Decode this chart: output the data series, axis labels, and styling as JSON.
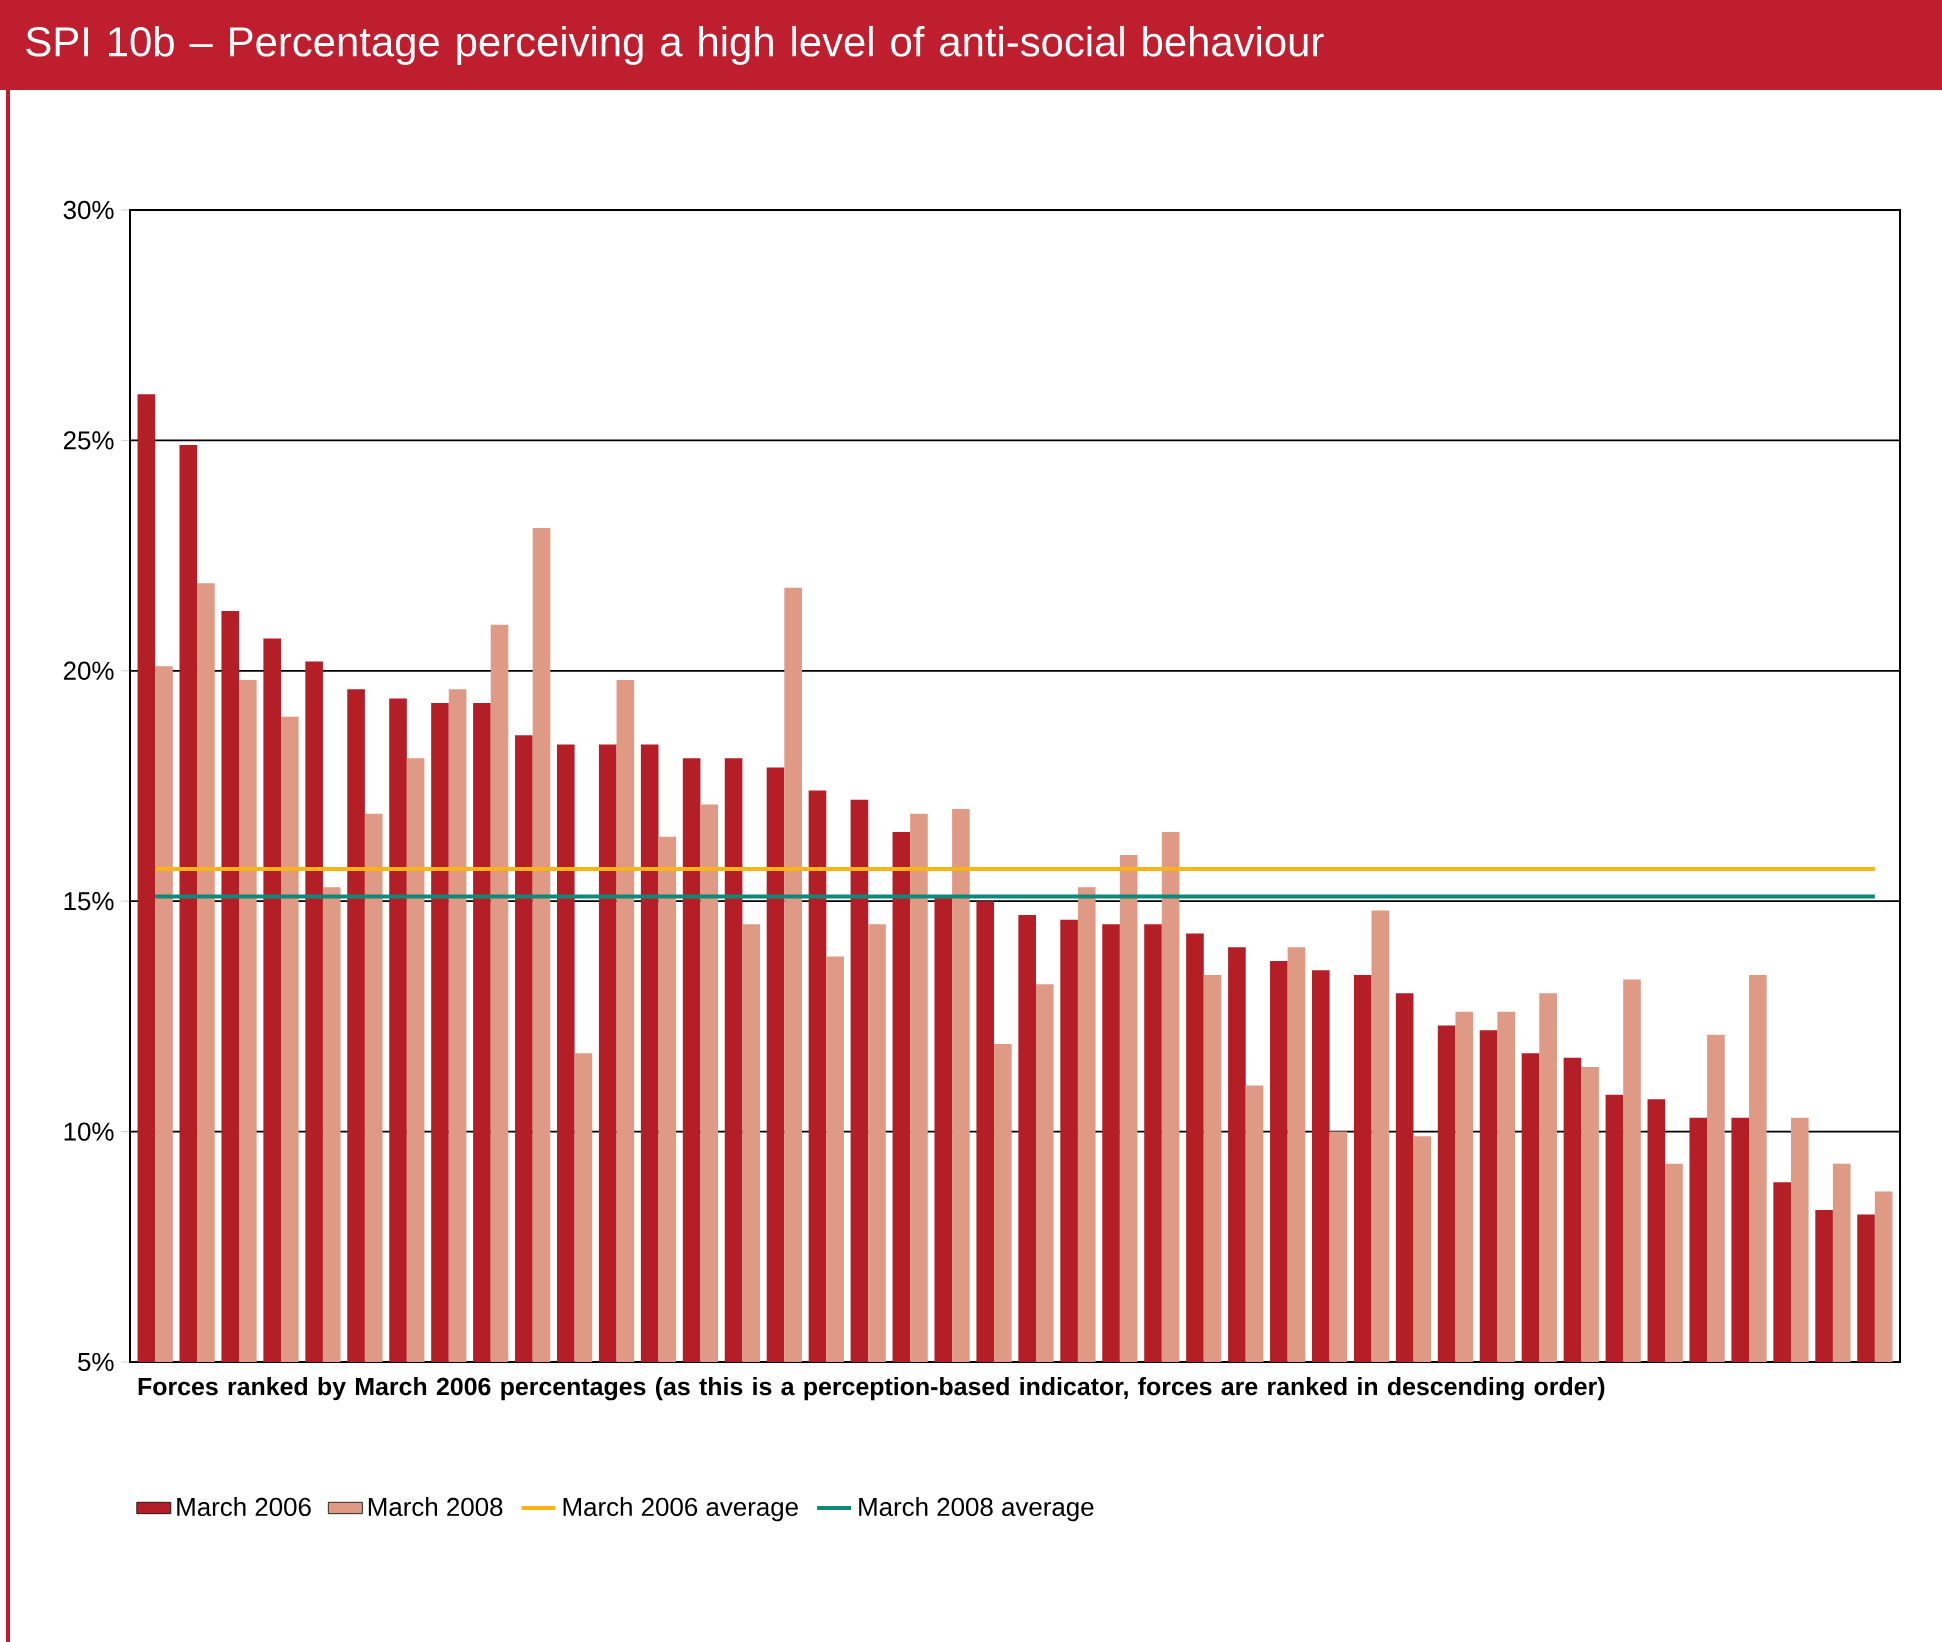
{
  "chart_data": {
    "type": "bar",
    "title": "SPI 10b – Percentage perceiving a high level of anti-social behaviour",
    "xlabel": "Forces ranked by March 2006 percentages (as this is a perception-based indicator, forces are ranked in descending order)",
    "categories": [
      null,
      null,
      null,
      null,
      null,
      null,
      null,
      null,
      null,
      null,
      null,
      null,
      null,
      null,
      null,
      null,
      null,
      null,
      null,
      null,
      null,
      null,
      null,
      null,
      null,
      null,
      null,
      null,
      null,
      null,
      null,
      null,
      null,
      null,
      null,
      null,
      null,
      null,
      null,
      null,
      null,
      null
    ],
    "series": [
      {
        "name": "March 2006",
        "color": "#b41f27",
        "values": [
          26.0,
          24.9,
          21.3,
          20.7,
          20.2,
          19.6,
          19.4,
          19.3,
          19.3,
          18.6,
          18.4,
          18.4,
          18.4,
          18.1,
          18.1,
          17.9,
          17.4,
          17.2,
          16.5,
          15.1,
          15.0,
          14.7,
          14.6,
          14.5,
          14.5,
          14.3,
          14.0,
          13.7,
          13.5,
          13.4,
          13.0,
          12.3,
          12.2,
          11.7,
          11.6,
          10.8,
          10.7,
          10.3,
          10.3,
          8.9,
          8.3,
          8.2
        ]
      },
      {
        "name": "March 2008",
        "color": "#de9a84",
        "values": [
          20.1,
          21.9,
          19.8,
          19.0,
          15.3,
          16.9,
          18.1,
          19.6,
          21.0,
          23.1,
          11.7,
          19.8,
          16.4,
          17.1,
          14.5,
          21.8,
          13.8,
          14.5,
          16.9,
          17.0,
          11.9,
          13.2,
          15.3,
          16.0,
          16.5,
          13.4,
          11.0,
          14.0,
          10.0,
          14.8,
          9.9,
          12.6,
          12.6,
          13.0,
          11.4,
          13.3,
          9.3,
          12.1,
          13.4,
          10.3,
          9.3,
          8.7
        ]
      },
      {
        "name": "March 2006 average",
        "type": "line",
        "color": "#fbb415",
        "values": [
          15.7,
          15.7,
          15.7,
          15.7,
          15.7,
          15.7,
          15.7,
          15.7,
          15.7,
          15.7,
          15.7,
          15.7,
          15.7,
          15.7,
          15.7,
          15.7,
          15.7,
          15.7,
          15.7,
          15.7,
          15.7,
          15.7,
          15.7,
          15.7,
          15.7,
          15.7,
          15.7,
          15.7,
          15.7,
          15.7,
          15.7,
          15.7,
          15.7,
          15.7,
          15.7,
          15.7,
          15.7,
          15.7,
          15.7,
          15.7,
          15.7,
          15.7
        ]
      },
      {
        "name": "March 2008 average",
        "type": "line",
        "color": "#0e8a7a",
        "values": [
          15.1,
          15.1,
          15.1,
          15.1,
          15.1,
          15.1,
          15.1,
          15.1,
          15.1,
          15.1,
          15.1,
          15.1,
          15.1,
          15.1,
          15.1,
          15.1,
          15.1,
          15.1,
          15.1,
          15.1,
          15.1,
          15.1,
          15.1,
          15.1,
          15.1,
          15.1,
          15.1,
          15.1,
          15.1,
          15.1,
          15.1,
          15.1,
          15.1,
          15.1,
          15.1,
          15.1,
          15.1,
          15.1,
          15.1,
          15.1,
          15.1,
          15.1
        ]
      }
    ],
    "ylim": [
      5,
      30
    ],
    "yticks": [
      {
        "value": 5,
        "label": "5%"
      },
      {
        "value": 10,
        "label": "10%"
      },
      {
        "value": 15,
        "label": "15%"
      },
      {
        "value": 20,
        "label": "20%"
      },
      {
        "value": 25,
        "label": "25%"
      },
      {
        "value": 30,
        "label": "30%"
      }
    ],
    "grid": "y",
    "legend": "bottom",
    "marker": "none",
    "line_style": "solid"
  }
}
